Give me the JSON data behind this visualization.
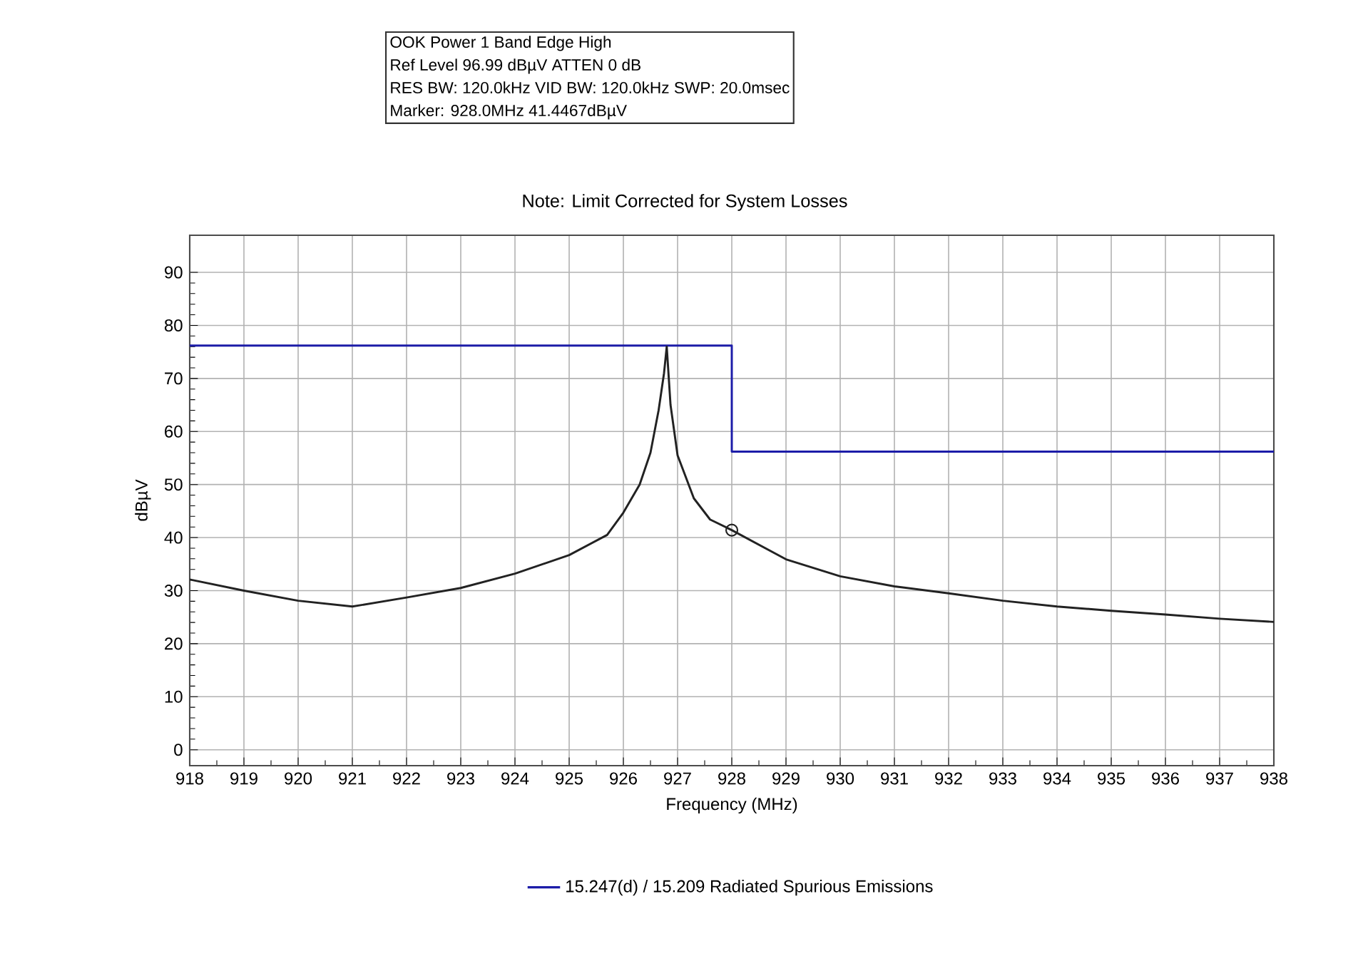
{
  "chart_data": {
    "type": "line",
    "title": "OOK Power 1 Band Edge High",
    "subtitle": "Note: Limit Corrected for System Losses",
    "annotations": [
      "Ref Level 96.99 dBµV ATTEN 0 dB",
      "RES BW: 120.0kHz VID BW: 120.0kHz SWP: 20.0msec",
      "Marker: 928.0MHz 41.4467dBµV"
    ],
    "xlabel": "Frequency (MHz)",
    "ylabel": "dBµV",
    "xlim": [
      918,
      938
    ],
    "ylim": [
      -3,
      97
    ],
    "xticks": [
      918,
      919,
      920,
      921,
      922,
      923,
      924,
      925,
      926,
      927,
      928,
      929,
      930,
      931,
      932,
      933,
      934,
      935,
      936,
      937,
      938
    ],
    "yticks": [
      0,
      10,
      20,
      30,
      40,
      50,
      60,
      70,
      80,
      90
    ],
    "grid": true,
    "legend": "bottom",
    "series": [
      {
        "name": "15.247(d) / 15.209 Radiated Spurious Emissions",
        "color": "#1c1ca8",
        "x": [
          918,
          928,
          928,
          938
        ],
        "values": [
          76.2,
          76.2,
          56.2,
          56.2
        ]
      },
      {
        "color": "#222222",
        "x": [
          918,
          919,
          920,
          921,
          922,
          923,
          924,
          925,
          925.7,
          926,
          926.3,
          926.5,
          926.65,
          926.75,
          926.8,
          926.87,
          927,
          927.3,
          927.6,
          928,
          929,
          930,
          931,
          932,
          933,
          934,
          935,
          936,
          937,
          938
        ],
        "values": [
          32.1,
          30,
          28.1,
          27,
          28.7,
          30.5,
          33.2,
          36.7,
          40.5,
          44.7,
          50,
          56,
          64,
          71,
          76,
          65,
          55.5,
          47.4,
          43.4,
          41.4,
          35.9,
          32.7,
          30.8,
          29.5,
          28.1,
          27,
          26.2,
          25.5,
          24.7,
          24.1
        ]
      },
      {
        "color": "#222222",
        "type": "scatter",
        "x": [
          928
        ],
        "values": [
          41.4
        ]
      }
    ]
  }
}
